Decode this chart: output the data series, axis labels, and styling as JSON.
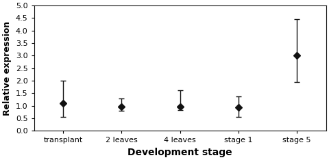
{
  "categories": [
    "transplant",
    "2 leaves",
    "4 leaves",
    "stage 1",
    "stage 5"
  ],
  "values": [
    1.1,
    0.95,
    0.97,
    0.93,
    3.0
  ],
  "yerr_upper": [
    0.9,
    0.35,
    0.65,
    0.45,
    1.45
  ],
  "yerr_lower": [
    0.55,
    0.15,
    0.15,
    0.38,
    1.05
  ],
  "xlabel": "Development stage",
  "ylabel": "Relative expression",
  "ylim": [
    0.0,
    5.0
  ],
  "yticks": [
    0.0,
    0.5,
    1.0,
    1.5,
    2.0,
    2.5,
    3.0,
    3.5,
    4.0,
    4.5,
    5.0
  ],
  "line_color": "#111111",
  "marker": "D",
  "marker_size": 5,
  "marker_facecolor": "#111111",
  "capsize": 3,
  "linewidth": 1.5,
  "elinewidth": 1.0,
  "background_color": "#ffffff",
  "xlabel_fontsize": 10,
  "ylabel_fontsize": 9,
  "tick_fontsize": 8
}
